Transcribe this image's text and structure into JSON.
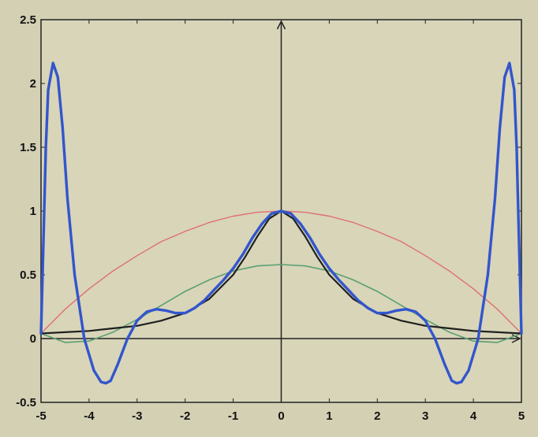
{
  "chart_data": {
    "type": "line",
    "title": "",
    "xlabel": "",
    "ylabel": "",
    "xlim": [
      -5,
      5
    ],
    "ylim": [
      -0.5,
      2.5
    ],
    "xticks": [
      "-5",
      "-4",
      "-3",
      "-2",
      "-1",
      "0",
      "1",
      "2",
      "3",
      "4",
      "5"
    ],
    "yticks": [
      "-0.5",
      "0",
      "0.5",
      "1",
      "1.5",
      "2",
      "2.5"
    ],
    "grid": false,
    "legend": "none",
    "series": [
      {
        "color": "#e07070",
        "x": [
          -5,
          -4.5,
          -4,
          -3.5,
          -3,
          -2.5,
          -2,
          -1.5,
          -1,
          -0.5,
          0,
          0.5,
          1,
          1.5,
          2,
          2.5,
          3,
          3.5,
          4,
          4.5,
          5
        ],
        "y": [
          0.04,
          0.23,
          0.39,
          0.53,
          0.65,
          0.76,
          0.84,
          0.91,
          0.96,
          0.99,
          1.0,
          0.99,
          0.96,
          0.91,
          0.84,
          0.76,
          0.65,
          0.53,
          0.39,
          0.23,
          0.04
        ]
      },
      {
        "color": "#5aa070",
        "x": [
          -5,
          -4.5,
          -4,
          -3.5,
          -3,
          -2.5,
          -2,
          -1.5,
          -1,
          -0.5,
          0,
          0.5,
          1,
          1.5,
          2,
          2.5,
          3,
          3.5,
          4,
          4.5,
          5
        ],
        "y": [
          0.04,
          -0.03,
          -0.02,
          0.05,
          0.15,
          0.26,
          0.37,
          0.46,
          0.53,
          0.57,
          0.58,
          0.57,
          0.53,
          0.46,
          0.37,
          0.26,
          0.15,
          0.05,
          -0.02,
          -0.03,
          0.04
        ]
      },
      {
        "color": "#202020",
        "x": [
          -5,
          -4.5,
          -4,
          -3.5,
          -3,
          -2.5,
          -2,
          -1.5,
          -1,
          -0.75,
          -0.5,
          -0.25,
          0,
          0.25,
          0.5,
          0.75,
          1,
          1.5,
          2,
          2.5,
          3,
          3.5,
          4,
          4.5,
          5
        ],
        "y": [
          0.04,
          0.05,
          0.06,
          0.08,
          0.1,
          0.14,
          0.2,
          0.31,
          0.5,
          0.64,
          0.8,
          0.94,
          1.0,
          0.94,
          0.8,
          0.64,
          0.5,
          0.31,
          0.2,
          0.14,
          0.1,
          0.08,
          0.06,
          0.05,
          0.04
        ]
      },
      {
        "color": "#3355cc",
        "x": [
          -5,
          -4.95,
          -4.9,
          -4.85,
          -4.75,
          -4.65,
          -4.55,
          -4.45,
          -4.3,
          -4.1,
          -3.9,
          -3.75,
          -3.65,
          -3.55,
          -3.4,
          -3.2,
          -3.0,
          -2.8,
          -2.6,
          -2.4,
          -2.2,
          -2.0,
          -1.8,
          -1.6,
          -1.4,
          -1.2,
          -1.0,
          -0.8,
          -0.6,
          -0.4,
          -0.2,
          0,
          0.2,
          0.4,
          0.6,
          0.8,
          1.0,
          1.2,
          1.4,
          1.6,
          1.8,
          2.0,
          2.2,
          2.4,
          2.6,
          2.8,
          3.0,
          3.2,
          3.4,
          3.55,
          3.65,
          3.75,
          3.9,
          4.1,
          4.3,
          4.45,
          4.55,
          4.65,
          4.75,
          4.85,
          4.9,
          4.95,
          5
        ],
        "y": [
          0.04,
          0.75,
          1.5,
          1.95,
          2.16,
          2.05,
          1.65,
          1.1,
          0.5,
          0.0,
          -0.25,
          -0.34,
          -0.35,
          -0.33,
          -0.2,
          0.0,
          0.14,
          0.21,
          0.23,
          0.22,
          0.2,
          0.2,
          0.24,
          0.3,
          0.38,
          0.46,
          0.55,
          0.66,
          0.79,
          0.9,
          0.98,
          1.0,
          0.98,
          0.9,
          0.79,
          0.66,
          0.55,
          0.46,
          0.38,
          0.3,
          0.24,
          0.2,
          0.2,
          0.22,
          0.23,
          0.21,
          0.14,
          0.0,
          -0.2,
          -0.33,
          -0.35,
          -0.34,
          -0.25,
          0.0,
          0.5,
          1.1,
          1.65,
          2.05,
          2.16,
          1.95,
          1.5,
          0.75,
          0.04
        ]
      }
    ]
  }
}
